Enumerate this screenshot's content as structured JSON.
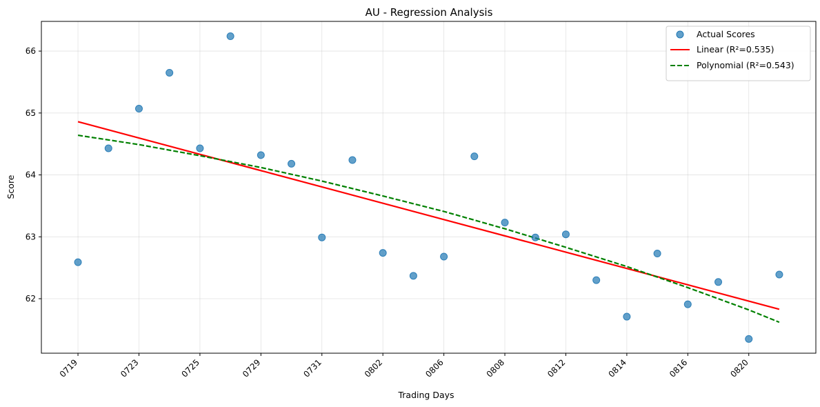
{
  "chart_data": {
    "type": "scatter",
    "title": "AU - Regression Analysis",
    "xlabel": "Trading Days",
    "ylabel": "Score",
    "grid": true,
    "legend_position": "top-right",
    "x_tick_labels": [
      "0719",
      "0723",
      "0725",
      "0729",
      "0731",
      "0802",
      "0806",
      "0808",
      "0812",
      "0814",
      "0816",
      "0820"
    ],
    "y_ticks": [
      62,
      63,
      64,
      65,
      66
    ],
    "xlim": [
      -1.2,
      24.2
    ],
    "ylim": [
      61.12,
      66.48
    ],
    "scatter": {
      "name": "Actual Scores",
      "color": "#1f77b4",
      "x": [
        0,
        1,
        2,
        3,
        4,
        5,
        6,
        7,
        8,
        9,
        10,
        11,
        12,
        13,
        14,
        15,
        16,
        17,
        18,
        19,
        20,
        21,
        22,
        23
      ],
      "y": [
        62.59,
        64.43,
        65.07,
        65.65,
        64.43,
        66.24,
        64.32,
        64.18,
        62.99,
        64.24,
        62.74,
        62.37,
        62.68,
        64.3,
        63.23,
        62.99,
        63.04,
        62.3,
        61.71,
        62.73,
        61.91,
        62.27,
        61.35,
        62.39
      ]
    },
    "linear_fit": {
      "name": "Linear (R²=0.535)",
      "color": "#ff0000",
      "x": [
        0,
        23
      ],
      "y": [
        64.86,
        61.83
      ]
    },
    "polynomial_fit": {
      "name": "Polynomial (R²=0.543)",
      "color": "#008000",
      "x": [
        0,
        2,
        4,
        6,
        8,
        10,
        12,
        14,
        16,
        18,
        20,
        22,
        23
      ],
      "y": [
        64.64,
        64.49,
        64.31,
        64.12,
        63.9,
        63.66,
        63.41,
        63.13,
        62.83,
        62.52,
        62.18,
        61.82,
        61.62
      ]
    }
  }
}
